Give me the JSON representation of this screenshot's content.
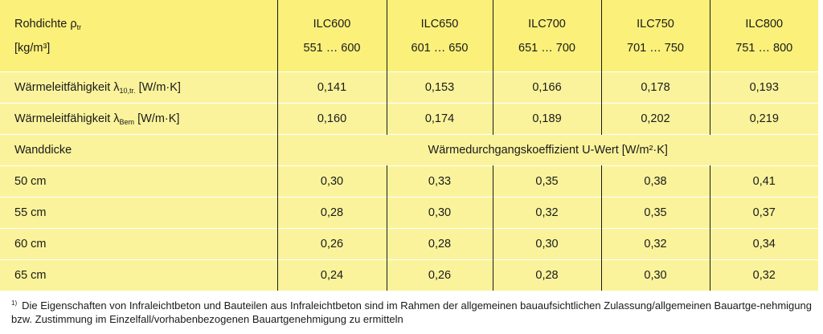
{
  "header": {
    "col0_line1": "Rohdichte ρ",
    "col0_line1_sub": "tr",
    "col0_line2": "[kg/m³]",
    "grades": [
      {
        "name": "ILC600",
        "range": "551 … 600"
      },
      {
        "name": "ILC650",
        "range": "601 … 650"
      },
      {
        "name": "ILC700",
        "range": "651 … 700"
      },
      {
        "name": "ILC750",
        "range": "701 … 750"
      },
      {
        "name": "ILC800",
        "range": "751 … 800"
      }
    ]
  },
  "rows": {
    "lambda10": {
      "label_pre": "Wärmeleitfähigkeit λ",
      "label_sub": "10,tr.",
      "label_post": " [W/m·K]",
      "values": [
        "0,141",
        "0,153",
        "0,166",
        "0,178",
        "0,193"
      ]
    },
    "lambdaBem": {
      "label_pre": "Wärmeleitfähigkeit λ",
      "label_sub": "Bem",
      "label_post": " [W/m·K]",
      "values": [
        "0,160",
        "0,174",
        "0,189",
        "0,202",
        "0,219"
      ]
    },
    "wanddicke": {
      "label": "Wanddicke",
      "span_text": "Wärmedurchgangskoeffizient U-Wert [W/m²·K]"
    },
    "thickness": [
      {
        "label": "50 cm",
        "values": [
          "0,30",
          "0,33",
          "0,35",
          "0,38",
          "0,41"
        ]
      },
      {
        "label": "55 cm",
        "values": [
          "0,28",
          "0,30",
          "0,32",
          "0,35",
          "0,37"
        ]
      },
      {
        "label": "60 cm",
        "values": [
          "0,26",
          "0,28",
          "0,30",
          "0,32",
          "0,34"
        ]
      },
      {
        "label": "65 cm",
        "values": [
          "0,24",
          "0,26",
          "0,28",
          "0,30",
          "0,32"
        ]
      }
    ]
  },
  "footnote": {
    "marker": "1)",
    "text": "Die Eigenschaften von Infraleichtbeton und Bauteilen aus Infraleichtbeton sind im Rahmen der allgemeinen bauaufsichtlichen Zulassung/allgemeinen Bauartge-nehmigung bzw. Zustimmung im Einzelfall/vorhabenbezogenen Bauartgenehmigung zu ermitteln"
  }
}
